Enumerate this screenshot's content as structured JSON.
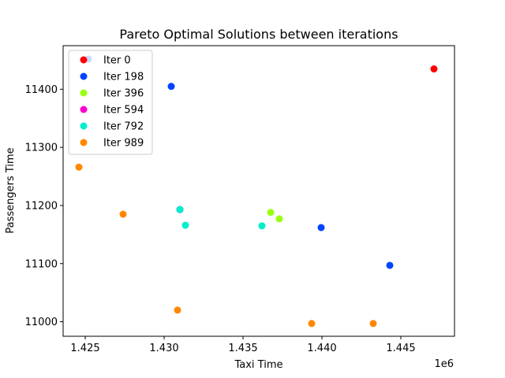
{
  "chart_data": {
    "type": "scatter",
    "title": "Pareto Optimal Solutions between iterations",
    "xlabel": "Taxi Time",
    "ylabel": "Passengers Time",
    "x_offset_label": "1e6",
    "x_scale": 1000000,
    "xlim": [
      1.4236,
      1.4484
    ],
    "ylim": [
      10975,
      11475
    ],
    "x_ticks": [
      1.425,
      1.43,
      1.435,
      1.44,
      1.445
    ],
    "x_tick_labels": [
      "1.425",
      "1.430",
      "1.435",
      "1.440",
      "1.445"
    ],
    "y_ticks": [
      11000,
      11100,
      11200,
      11300,
      11400
    ],
    "y_tick_labels": [
      "11000",
      "11100",
      "11200",
      "11300",
      "11400"
    ],
    "grid": false,
    "legend_position": "top-left",
    "series": [
      {
        "name": "Iter 0",
        "color": "#ff0000",
        "points": [
          [
            1.4471,
            11435
          ]
        ]
      },
      {
        "name": "Iter 198",
        "color": "#0044ff",
        "points": [
          [
            1.4252,
            11452
          ],
          [
            1.43045,
            11405
          ],
          [
            1.431,
            11193
          ],
          [
            1.43995,
            11162
          ],
          [
            1.4443,
            11097
          ]
        ]
      },
      {
        "name": "Iter 396",
        "color": "#99ff11",
        "points": [
          [
            1.43675,
            11188
          ],
          [
            1.4373,
            11177
          ]
        ]
      },
      {
        "name": "Iter 594",
        "color": "#ff00cc",
        "points": [
          [
            1.431,
            11193
          ]
        ]
      },
      {
        "name": "Iter 792",
        "color": "#00eecc",
        "points": [
          [
            1.431,
            11193
          ],
          [
            1.43135,
            11166
          ],
          [
            1.4362,
            11165
          ]
        ]
      },
      {
        "name": "Iter 989",
        "color": "#ff8800",
        "points": [
          [
            1.4246,
            11266
          ],
          [
            1.4274,
            11185
          ],
          [
            1.43085,
            11020
          ],
          [
            1.43935,
            10997
          ],
          [
            1.44325,
            10997
          ]
        ]
      }
    ]
  }
}
